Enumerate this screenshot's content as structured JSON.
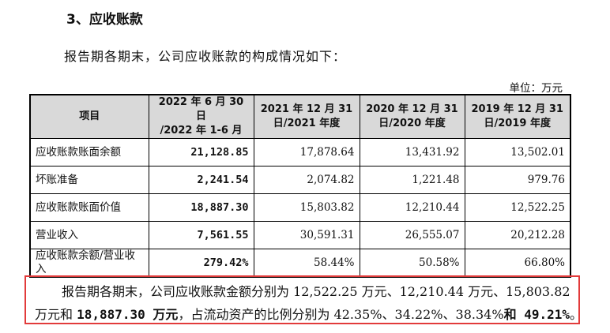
{
  "heading": "3、应收账款",
  "intro": "报告期各期末，公司应收账款的构成情况如下：",
  "unit": "单位：万元",
  "table": {
    "headers": [
      [
        "项目"
      ],
      [
        "2022 年 6 月 30 日",
        "/2022 年 1-6 月"
      ],
      [
        "2021 年 12 月 31",
        "日/2021 年度"
      ],
      [
        "2020 年 12 月 31",
        "日/2020 年度"
      ],
      [
        "2019 年 12 月 31",
        "日/2019 年度"
      ]
    ],
    "rows": [
      {
        "label": "应收账款账面余额",
        "values": [
          "21,128.85",
          "17,878.64",
          "13,431.92",
          "13,502.01"
        ]
      },
      {
        "label": "坏账准备",
        "values": [
          "2,241.54",
          "2,074.82",
          "1,221.48",
          "979.76"
        ]
      },
      {
        "label": "应收账款账面价值",
        "values": [
          "18,887.30",
          "15,803.82",
          "12,210.44",
          "12,522.25"
        ]
      },
      {
        "label": "营业收入",
        "values": [
          "7,561.55",
          "30,591.31",
          "26,555.07",
          "20,212.28"
        ]
      },
      {
        "label": "应收账款余额/营业收入",
        "values": [
          "279.42%",
          "58.44%",
          "50.58%",
          "66.80%"
        ]
      }
    ]
  },
  "summary": {
    "l1": "报告期各期末，公司应收账款金额分别为 12,522.25 万元、12,210.44 万元、15,803.82",
    "l2a": "万元和 ",
    "l2b": "18,887.30 万元",
    "l2c": "，占流动资产的比例分别为 42.35%、34.22%、38.34%",
    "l2d": "和 49.21%",
    "l2e": "。"
  },
  "colors": {
    "callout_border": "#e23b3b",
    "header_bg": "#d9d9d9"
  }
}
